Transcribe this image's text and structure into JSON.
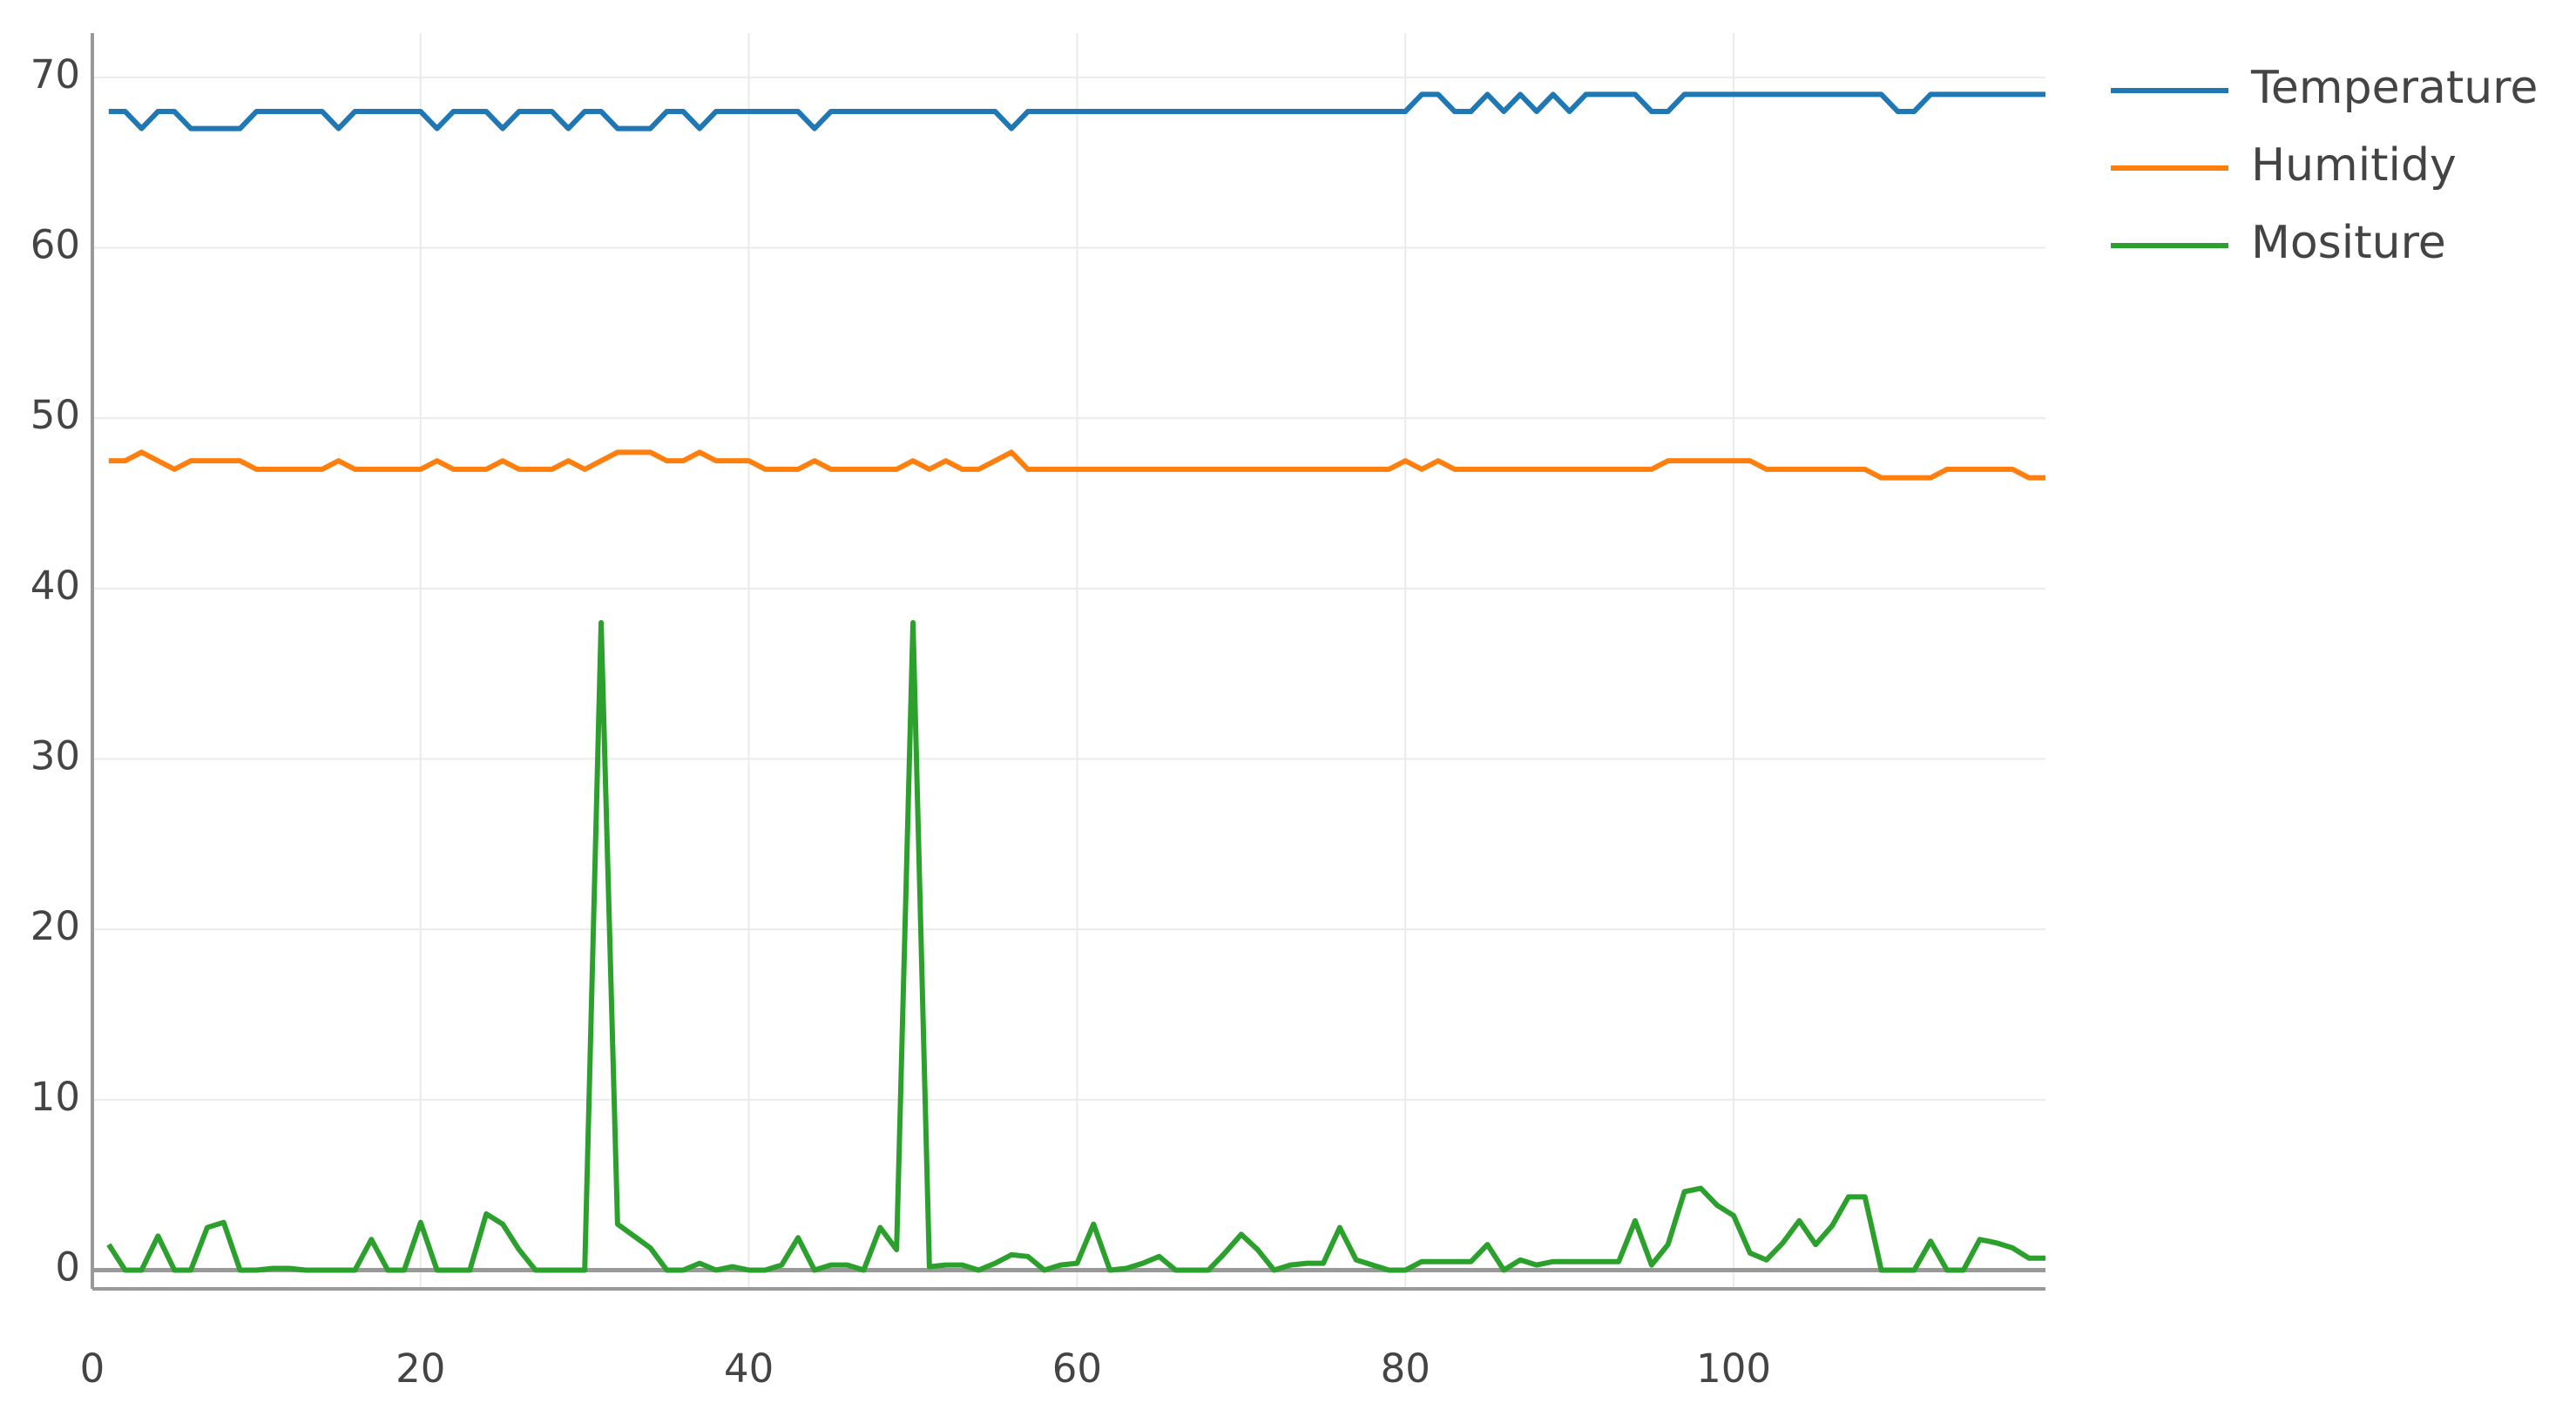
{
  "chart_data": {
    "type": "line",
    "x": [
      1,
      2,
      3,
      4,
      5,
      6,
      7,
      8,
      9,
      10,
      11,
      12,
      13,
      14,
      15,
      16,
      17,
      18,
      19,
      20,
      21,
      22,
      23,
      24,
      25,
      26,
      27,
      28,
      29,
      30,
      31,
      32,
      33,
      34,
      35,
      36,
      37,
      38,
      39,
      40,
      41,
      42,
      43,
      44,
      45,
      46,
      47,
      48,
      49,
      50,
      51,
      52,
      53,
      54,
      55,
      56,
      57,
      58,
      59,
      60,
      61,
      62,
      63,
      64,
      65,
      66,
      67,
      68,
      69,
      70,
      71,
      72,
      73,
      74,
      75,
      76,
      77,
      78,
      79,
      80,
      81,
      82,
      83,
      84,
      85,
      86,
      87,
      88,
      89,
      90,
      91,
      92,
      93,
      94,
      95,
      96,
      97,
      98,
      99,
      100,
      101,
      102,
      103,
      104,
      105,
      106,
      107,
      108,
      109,
      110,
      111,
      112,
      113,
      114,
      115,
      116,
      117,
      118,
      119
    ],
    "series": [
      {
        "name": "Temperature",
        "color": "#1f77b4",
        "values": [
          68,
          68,
          67,
          68,
          68,
          67,
          67,
          67,
          67,
          68,
          68,
          68,
          68,
          68,
          67,
          68,
          68,
          68,
          68,
          68,
          67,
          68,
          68,
          68,
          67,
          68,
          68,
          68,
          67,
          68,
          68,
          67,
          67,
          67,
          68,
          68,
          67,
          68,
          68,
          68,
          68,
          68,
          68,
          67,
          68,
          68,
          68,
          68,
          68,
          68,
          68,
          68,
          68,
          68,
          68,
          67,
          68,
          68,
          68,
          68,
          68,
          68,
          68,
          68,
          68,
          68,
          68,
          68,
          68,
          68,
          68,
          68,
          68,
          68,
          68,
          68,
          68,
          68,
          68,
          68,
          69,
          69,
          68,
          68,
          69,
          68,
          69,
          68,
          69,
          68,
          69,
          69,
          69,
          69,
          68,
          68,
          69,
          69,
          69,
          69,
          69,
          69,
          69,
          69,
          69,
          69,
          69,
          69,
          69,
          68,
          68,
          69,
          69,
          69,
          69,
          69,
          69,
          69,
          69
        ]
      },
      {
        "name": "Humitidy",
        "color": "#ff7f0e",
        "values": [
          47.5,
          47.5,
          48,
          47.5,
          47,
          47.5,
          47.5,
          47.5,
          47.5,
          47,
          47,
          47,
          47,
          47,
          47.5,
          47,
          47,
          47,
          47,
          47,
          47.5,
          47,
          47,
          47,
          47.5,
          47,
          47,
          47,
          47.5,
          47,
          47.5,
          48,
          48,
          48,
          47.5,
          47.5,
          48,
          47.5,
          47.5,
          47.5,
          47,
          47,
          47,
          47.5,
          47,
          47,
          47,
          47,
          47,
          47.5,
          47,
          47.5,
          47,
          47,
          47.5,
          48,
          47,
          47,
          47,
          47,
          47,
          47,
          47,
          47,
          47,
          47,
          47,
          47,
          47,
          47,
          47,
          47,
          47,
          47,
          47,
          47,
          47,
          47,
          47,
          47.5,
          47,
          47.5,
          47,
          47,
          47,
          47,
          47,
          47,
          47,
          47,
          47,
          47,
          47,
          47,
          47,
          47.5,
          47.5,
          47.5,
          47.5,
          47.5,
          47.5,
          47,
          47,
          47,
          47,
          47,
          47,
          47,
          46.5,
          46.5,
          46.5,
          46.5,
          47,
          47,
          47,
          47,
          47,
          46.5,
          46.5
        ]
      },
      {
        "name": "Mositure",
        "color": "#2ca02c",
        "values": [
          1.5,
          0,
          0,
          2,
          0,
          0,
          2.5,
          2.8,
          0,
          0,
          0.1,
          0.1,
          0,
          0,
          0,
          0,
          1.8,
          0,
          0,
          2.8,
          0,
          0,
          0,
          3.3,
          2.7,
          1.2,
          0,
          0,
          0,
          0,
          38,
          2.7,
          2,
          1.3,
          0,
          0,
          0.4,
          0,
          0.2,
          0,
          0,
          0.3,
          1.9,
          0,
          0.3,
          0.3,
          0,
          2.5,
          1.2,
          38,
          0.2,
          0.3,
          0.3,
          0,
          0.4,
          0.9,
          0.8,
          0,
          0.3,
          0.4,
          2.7,
          0,
          0.1,
          0.4,
          0.8,
          0,
          0,
          0,
          1,
          2.1,
          1.2,
          0,
          0.3,
          0.4,
          0.4,
          2.5,
          0.6,
          0.3,
          0,
          0,
          0.5,
          0.5,
          0.5,
          0.5,
          1.5,
          0,
          0.6,
          0.3,
          0.5,
          0.5,
          0.5,
          0.5,
          0.5,
          2.9,
          0.3,
          1.5,
          4.6,
          4.8,
          3.8,
          3.2,
          1,
          0.6,
          1.6,
          2.9,
          1.5,
          2.6,
          4.3,
          4.3,
          0,
          0,
          0,
          1.7,
          0,
          0,
          1.8,
          1.6,
          1.3,
          0.7,
          0.7
        ]
      }
    ],
    "xlim": [
      0,
      119
    ],
    "ylim": [
      -1.1,
      72.6
    ],
    "xticks": [
      0,
      20,
      40,
      60,
      80,
      100
    ],
    "yticks": [
      0,
      10,
      20,
      30,
      40,
      50,
      60,
      70
    ],
    "grid": true,
    "legend": "right"
  }
}
